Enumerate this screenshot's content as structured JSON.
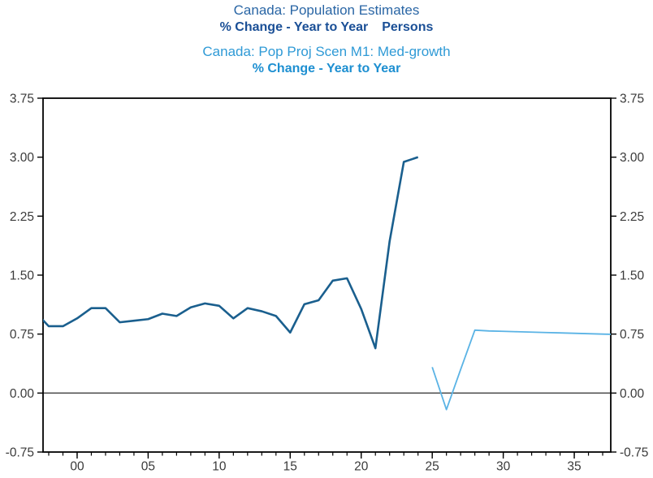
{
  "page": {
    "background": "#ffffff"
  },
  "titles": [
    {
      "text": "Canada: Population Estimates",
      "color": "#2a66a5",
      "bold": false
    },
    {
      "text": "% Change - Year to Year",
      "text2": "Persons",
      "color": "#1a4f96",
      "bold": true
    },
    {
      "text": "Canada: Pop Proj Scen M1: Med-growth",
      "color": "#2f9ad6",
      "bold": false
    },
    {
      "text": "% Change - Year to Year",
      "color": "#1d8fd1",
      "bold": true
    }
  ],
  "chart_data": {
    "type": "line",
    "title": "Canada: Population Estimates",
    "subtitle": "% Change - Year to Year   Persons",
    "secondary_title": "Canada: Pop Proj Scen M1: Med-growth",
    "secondary_subtitle": "% Change - Year to Year",
    "grid": false,
    "zero_line": true,
    "frame": "box",
    "legend_position": "title-stacked-top",
    "colors": {
      "axis_text": "#3a3a3a",
      "frame": "#000000",
      "zero_line": "#3f3f3f",
      "background": "#ffffff"
    },
    "y_axis": {
      "min": -0.75,
      "max": 3.75,
      "step": 0.75,
      "sides": "both",
      "ticks": [
        {
          "value": 3.75,
          "label": "3.75"
        },
        {
          "value": 3.0,
          "label": "3.00"
        },
        {
          "value": 2.25,
          "label": "2.25"
        },
        {
          "value": 1.5,
          "label": "1.50"
        },
        {
          "value": 0.75,
          "label": "0.75"
        },
        {
          "value": 0.0,
          "label": "0.00"
        },
        {
          "value": -0.75,
          "label": "-0.75"
        }
      ]
    },
    "x_axis": {
      "min": 1997.6,
      "max": 2037.57,
      "minor_tick_from": 1998,
      "minor_tick_to": 2037,
      "major_ticks": [
        {
          "year": 2000,
          "label": "00"
        },
        {
          "year": 2005,
          "label": "05"
        },
        {
          "year": 2010,
          "label": "10"
        },
        {
          "year": 2015,
          "label": "15"
        },
        {
          "year": 2020,
          "label": "20"
        },
        {
          "year": 2025,
          "label": "25"
        },
        {
          "year": 2030,
          "label": "30"
        },
        {
          "year": 2035,
          "label": "35"
        }
      ]
    },
    "series": [
      {
        "name": "Canada: Population Estimates",
        "units": "% Change - Year to Year, Persons",
        "color": "#1a5f8e",
        "stroke_width": 2.6,
        "points": [
          [
            1997,
            1.04
          ],
          [
            1998,
            0.85
          ],
          [
            1999,
            0.85
          ],
          [
            2000,
            0.95
          ],
          [
            2001,
            1.08
          ],
          [
            2002,
            1.08
          ],
          [
            2003,
            0.9
          ],
          [
            2004,
            0.92
          ],
          [
            2005,
            0.94
          ],
          [
            2006,
            1.01
          ],
          [
            2007,
            0.98
          ],
          [
            2008,
            1.09
          ],
          [
            2009,
            1.14
          ],
          [
            2010,
            1.11
          ],
          [
            2011,
            0.95
          ],
          [
            2012,
            1.08
          ],
          [
            2013,
            1.04
          ],
          [
            2014,
            0.98
          ],
          [
            2015,
            0.77
          ],
          [
            2016,
            1.13
          ],
          [
            2017,
            1.18
          ],
          [
            2018,
            1.43
          ],
          [
            2019,
            1.46
          ],
          [
            2020,
            1.07
          ],
          [
            2021,
            0.57
          ],
          [
            2022,
            1.93
          ],
          [
            2023,
            2.94
          ],
          [
            2024,
            3.0
          ]
        ]
      },
      {
        "name": "Canada: Pop Proj Scen M1: Med-growth",
        "units": "% Change - Year to Year",
        "color": "#5ab3e5",
        "stroke_width": 1.8,
        "points": [
          [
            2025,
            0.33
          ],
          [
            2026,
            -0.21
          ],
          [
            2027,
            0.3
          ],
          [
            2028,
            0.8
          ],
          [
            2029,
            0.79
          ],
          [
            2030,
            0.785
          ],
          [
            2031,
            0.78
          ],
          [
            2032,
            0.775
          ],
          [
            2033,
            0.77
          ],
          [
            2034,
            0.765
          ],
          [
            2035,
            0.76
          ],
          [
            2036,
            0.755
          ],
          [
            2037,
            0.75
          ],
          [
            2037.57,
            0.747
          ]
        ]
      }
    ]
  }
}
